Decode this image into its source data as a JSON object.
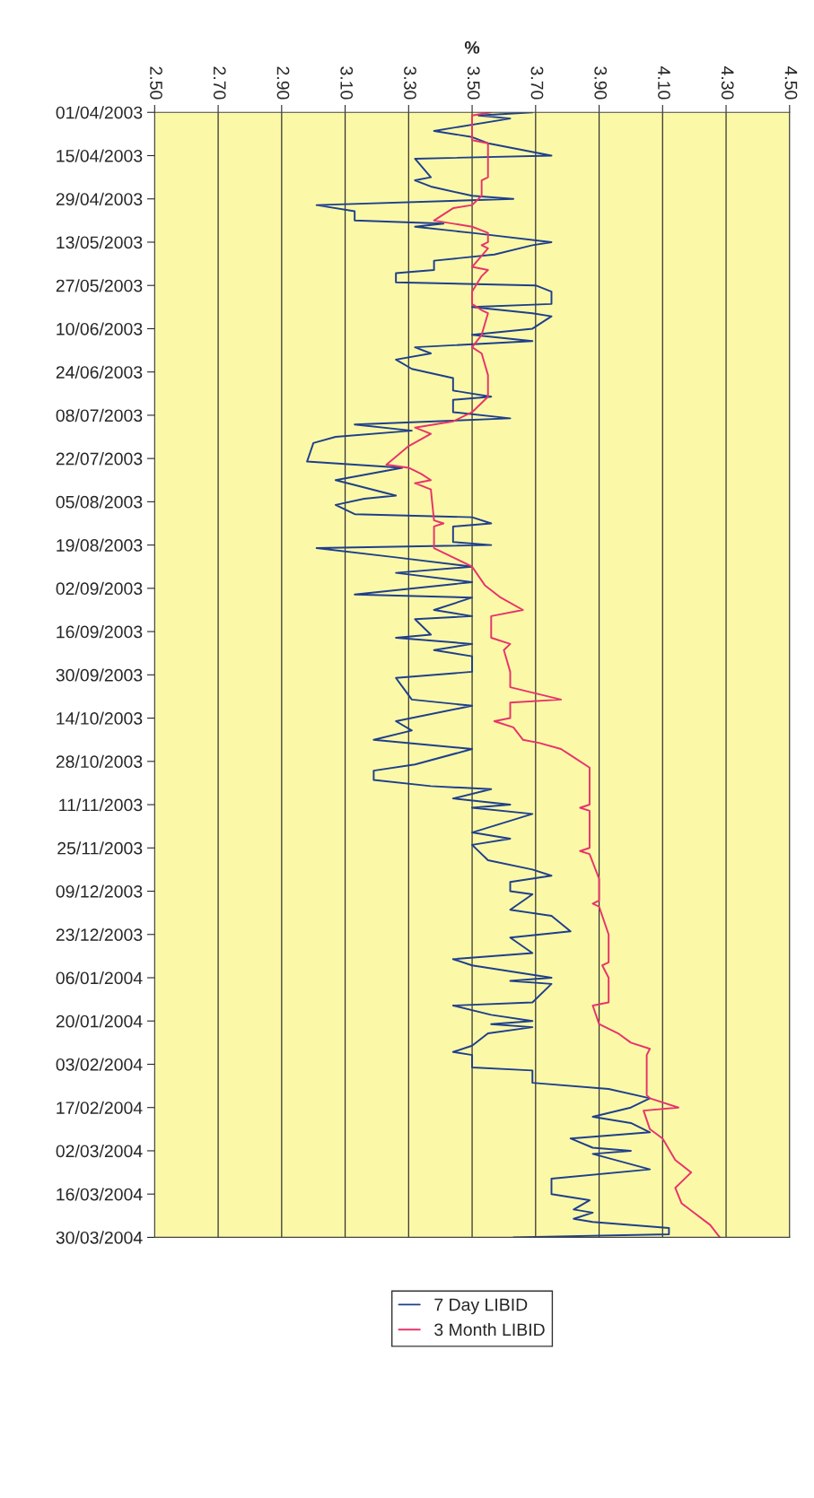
{
  "chart_data": {
    "type": "line",
    "orientation": "horizontal",
    "xlabel": "%",
    "xlim": [
      2.5,
      4.5
    ],
    "xticks": [
      {
        "value": 2.5,
        "label": "2.50"
      },
      {
        "value": 2.7,
        "label": "2.70"
      },
      {
        "value": 2.9,
        "label": "2.90"
      },
      {
        "value": 3.1,
        "label": "3.10"
      },
      {
        "value": 3.3,
        "label": "3.30"
      },
      {
        "value": 3.5,
        "label": "3.50"
      },
      {
        "value": 3.7,
        "label": "3.70"
      },
      {
        "value": 3.9,
        "label": "3.90"
      },
      {
        "value": 4.1,
        "label": "4.10"
      },
      {
        "value": 4.3,
        "label": "4.30"
      },
      {
        "value": 4.5,
        "label": "4.50"
      }
    ],
    "ylim": [
      "2004-03-30",
      "2003-04-01"
    ],
    "yticks": [
      {
        "value": "2003-04-01",
        "label": "01/04/2003"
      },
      {
        "value": "2003-04-15",
        "label": "15/04/2003"
      },
      {
        "value": "2003-04-29",
        "label": "29/04/2003"
      },
      {
        "value": "2003-05-13",
        "label": "13/05/2003"
      },
      {
        "value": "2003-05-27",
        "label": "27/05/2003"
      },
      {
        "value": "2003-06-10",
        "label": "10/06/2003"
      },
      {
        "value": "2003-06-24",
        "label": "24/06/2003"
      },
      {
        "value": "2003-07-08",
        "label": "08/07/2003"
      },
      {
        "value": "2003-07-22",
        "label": "22/07/2003"
      },
      {
        "value": "2003-08-05",
        "label": "05/08/2003"
      },
      {
        "value": "2003-08-19",
        "label": "19/08/2003"
      },
      {
        "value": "2003-09-02",
        "label": "02/09/2003"
      },
      {
        "value": "2003-09-16",
        "label": "16/09/2003"
      },
      {
        "value": "2003-09-30",
        "label": "30/09/2003"
      },
      {
        "value": "2003-10-14",
        "label": "14/10/2003"
      },
      {
        "value": "2003-10-28",
        "label": "28/10/2003"
      },
      {
        "value": "2003-11-11",
        "label": "11/11/2003"
      },
      {
        "value": "2003-11-25",
        "label": "25/11/2003"
      },
      {
        "value": "2003-12-09",
        "label": "09/12/2003"
      },
      {
        "value": "2003-12-23",
        "label": "23/12/2003"
      },
      {
        "value": "2004-01-06",
        "label": "06/01/2004"
      },
      {
        "value": "2004-01-20",
        "label": "20/01/2004"
      },
      {
        "value": "2004-02-03",
        "label": "03/02/2004"
      },
      {
        "value": "2004-02-17",
        "label": "17/02/2004"
      },
      {
        "value": "2004-03-02",
        "label": "02/03/2004"
      },
      {
        "value": "2004-03-16",
        "label": "16/03/2004"
      },
      {
        "value": "2004-03-30",
        "label": "30/03/2004"
      }
    ],
    "grid": "x",
    "legend": "bottom",
    "marker": "none",
    "line_style": "solid",
    "series": [
      {
        "name": "7 Day LIBID",
        "color": "#1f3f8c",
        "x": [
          "2003-04-01",
          "2003-04-02",
          "2003-04-03",
          "2003-04-07",
          "2003-04-09",
          "2003-04-11",
          "2003-04-15",
          "2003-04-16",
          "2003-04-22",
          "2003-04-23",
          "2003-04-25",
          "2003-04-28",
          "2003-04-29",
          "2003-05-01",
          "2003-05-03",
          "2003-05-06",
          "2003-05-07",
          "2003-05-08",
          "2003-05-10",
          "2003-05-13",
          "2003-05-14",
          "2003-05-17",
          "2003-05-19",
          "2003-05-22",
          "2003-05-23",
          "2003-05-26",
          "2003-05-27",
          "2003-05-29",
          "2003-06-02",
          "2003-06-03",
          "2003-06-05",
          "2003-06-06",
          "2003-06-10",
          "2003-06-12",
          "2003-06-14",
          "2003-06-16",
          "2003-06-18",
          "2003-06-20",
          "2003-06-23",
          "2003-06-26",
          "2003-06-30",
          "2003-07-02",
          "2003-07-03",
          "2003-07-07",
          "2003-07-09",
          "2003-07-11",
          "2003-07-13",
          "2003-07-15",
          "2003-07-17",
          "2003-07-23",
          "2003-07-25",
          "2003-07-29",
          "2003-08-03",
          "2003-08-04",
          "2003-08-06",
          "2003-08-09",
          "2003-08-10",
          "2003-08-12",
          "2003-08-13",
          "2003-08-18",
          "2003-08-19",
          "2003-08-20",
          "2003-08-23",
          "2003-08-26",
          "2003-08-28",
          "2003-08-31",
          "2003-09-04",
          "2003-09-05",
          "2003-09-09",
          "2003-09-11",
          "2003-09-12",
          "2003-09-17",
          "2003-09-18",
          "2003-09-20",
          "2003-09-22",
          "2003-09-24",
          "2003-09-29",
          "2003-10-01",
          "2003-10-08",
          "2003-10-10",
          "2003-10-15",
          "2003-10-18",
          "2003-10-21",
          "2003-10-24",
          "2003-10-29",
          "2003-10-31",
          "2003-11-03",
          "2003-11-05",
          "2003-11-06",
          "2003-11-09",
          "2003-11-11",
          "2003-11-12",
          "2003-11-14",
          "2003-11-20",
          "2003-11-22",
          "2003-11-24",
          "2003-11-29",
          "2003-12-02",
          "2003-12-04",
          "2003-12-06",
          "2003-12-09",
          "2003-12-10",
          "2003-12-15",
          "2003-12-17",
          "2003-12-22",
          "2003-12-24",
          "2003-12-29",
          "2003-12-31",
          "2004-01-02",
          "2004-01-06",
          "2004-01-07",
          "2004-01-08",
          "2004-01-14",
          "2004-01-15",
          "2004-01-18",
          "2004-01-20",
          "2004-01-21",
          "2004-01-22",
          "2004-01-24",
          "2004-01-28",
          "2004-01-30",
          "2004-01-31",
          "2004-02-04",
          "2004-02-05",
          "2004-02-09",
          "2004-02-11",
          "2004-02-14",
          "2004-02-17",
          "2004-02-20",
          "2004-02-22",
          "2004-02-25",
          "2004-02-27",
          "2004-03-01",
          "2004-03-02",
          "2004-03-03",
          "2004-03-08",
          "2004-03-11",
          "2004-03-16",
          "2004-03-18",
          "2004-03-21",
          "2004-03-22",
          "2004-03-24",
          "2004-03-25",
          "2004-03-27",
          "2004-03-29",
          "2004-03-30"
        ],
        "values": [
          3.69,
          3.52,
          3.62,
          3.38,
          3.5,
          3.55,
          3.75,
          3.32,
          3.37,
          3.32,
          3.37,
          3.5,
          3.63,
          3.01,
          3.13,
          3.13,
          3.41,
          3.32,
          3.5,
          3.75,
          3.69,
          3.57,
          3.38,
          3.38,
          3.26,
          3.26,
          3.7,
          3.75,
          3.75,
          3.5,
          3.69,
          3.75,
          3.69,
          3.5,
          3.69,
          3.32,
          3.37,
          3.26,
          3.31,
          3.44,
          3.44,
          3.56,
          3.44,
          3.44,
          3.62,
          3.13,
          3.31,
          3.07,
          3.0,
          2.98,
          3.28,
          3.07,
          3.26,
          3.16,
          3.07,
          3.13,
          3.5,
          3.56,
          3.44,
          3.44,
          3.56,
          3.01,
          3.26,
          3.5,
          3.26,
          3.5,
          3.13,
          3.5,
          3.38,
          3.5,
          3.32,
          3.37,
          3.26,
          3.5,
          3.38,
          3.5,
          3.5,
          3.26,
          3.31,
          3.5,
          3.26,
          3.31,
          3.19,
          3.5,
          3.32,
          3.19,
          3.19,
          3.37,
          3.56,
          3.44,
          3.62,
          3.5,
          3.69,
          3.5,
          3.62,
          3.5,
          3.55,
          3.69,
          3.75,
          3.62,
          3.62,
          3.69,
          3.62,
          3.75,
          3.81,
          3.62,
          3.69,
          3.44,
          3.5,
          3.75,
          3.62,
          3.75,
          3.69,
          3.44,
          3.56,
          3.69,
          3.56,
          3.69,
          3.55,
          3.5,
          3.44,
          3.5,
          3.5,
          3.69,
          3.69,
          3.93,
          4.06,
          4.0,
          3.88,
          4.0,
          4.06,
          3.81,
          3.88,
          4.0,
          3.88,
          4.06,
          3.75,
          3.75,
          3.87,
          3.82,
          3.88,
          3.82,
          3.88,
          4.12,
          4.12,
          3.63
        ]
      },
      {
        "name": "3 Month LIBID",
        "color": "#e8336b",
        "x": [
          "2003-04-01",
          "2003-04-02",
          "2003-04-10",
          "2003-04-11",
          "2003-04-22",
          "2003-04-23",
          "2003-04-28",
          "2003-05-01",
          "2003-05-02",
          "2003-05-06",
          "2003-05-08",
          "2003-05-10",
          "2003-05-13",
          "2003-05-14",
          "2003-05-15",
          "2003-05-21",
          "2003-05-22",
          "2003-05-24",
          "2003-05-29",
          "2003-06-02",
          "2003-06-04",
          "2003-06-05",
          "2003-06-12",
          "2003-06-16",
          "2003-06-18",
          "2003-06-25",
          "2003-07-02",
          "2003-07-07",
          "2003-07-10",
          "2003-07-12",
          "2003-07-14",
          "2003-07-18",
          "2003-07-24",
          "2003-07-25",
          "2003-07-27",
          "2003-07-29",
          "2003-07-30",
          "2003-08-01",
          "2003-08-11",
          "2003-08-12",
          "2003-08-13",
          "2003-08-20",
          "2003-08-23",
          "2003-08-26",
          "2003-09-01",
          "2003-09-05",
          "2003-09-09",
          "2003-09-11",
          "2003-09-18",
          "2003-09-20",
          "2003-09-22",
          "2003-09-29",
          "2003-10-04",
          "2003-10-08",
          "2003-10-09",
          "2003-10-14",
          "2003-10-15",
          "2003-10-17",
          "2003-10-21",
          "2003-10-22",
          "2003-10-24",
          "2003-10-26",
          "2003-10-30",
          "2003-11-11",
          "2003-11-12",
          "2003-11-13",
          "2003-11-25",
          "2003-11-26",
          "2003-11-27",
          "2003-12-05",
          "2003-12-12",
          "2003-12-13",
          "2003-12-14",
          "2003-12-23",
          "2004-01-01",
          "2004-01-02",
          "2004-01-06",
          "2004-01-14",
          "2004-01-15",
          "2004-01-21",
          "2004-01-24",
          "2004-01-27",
          "2004-01-29",
          "2004-01-31",
          "2004-02-13",
          "2004-02-14",
          "2004-02-17",
          "2004-02-18",
          "2004-02-24",
          "2004-02-27",
          "2004-03-05",
          "2004-03-09",
          "2004-03-12",
          "2004-03-14",
          "2004-03-19",
          "2004-03-26",
          "2004-03-30"
        ],
        "values": [
          3.56,
          3.5,
          3.5,
          3.55,
          3.55,
          3.53,
          3.53,
          3.5,
          3.44,
          3.38,
          3.5,
          3.55,
          3.55,
          3.53,
          3.55,
          3.5,
          3.55,
          3.53,
          3.5,
          3.5,
          3.53,
          3.55,
          3.53,
          3.5,
          3.53,
          3.55,
          3.55,
          3.5,
          3.44,
          3.32,
          3.37,
          3.3,
          3.23,
          3.3,
          3.34,
          3.37,
          3.32,
          3.37,
          3.38,
          3.41,
          3.38,
          3.38,
          3.44,
          3.5,
          3.54,
          3.59,
          3.66,
          3.56,
          3.56,
          3.62,
          3.6,
          3.62,
          3.62,
          3.78,
          3.62,
          3.62,
          3.57,
          3.63,
          3.66,
          3.71,
          3.78,
          3.81,
          3.87,
          3.87,
          3.84,
          3.87,
          3.87,
          3.84,
          3.87,
          3.9,
          3.9,
          3.88,
          3.9,
          3.93,
          3.93,
          3.91,
          3.93,
          3.93,
          3.88,
          3.9,
          3.96,
          4.0,
          4.06,
          4.05,
          4.05,
          4.06,
          4.15,
          4.04,
          4.06,
          4.1,
          4.14,
          4.19,
          4.16,
          4.14,
          4.16,
          4.25,
          4.28
        ]
      }
    ]
  }
}
